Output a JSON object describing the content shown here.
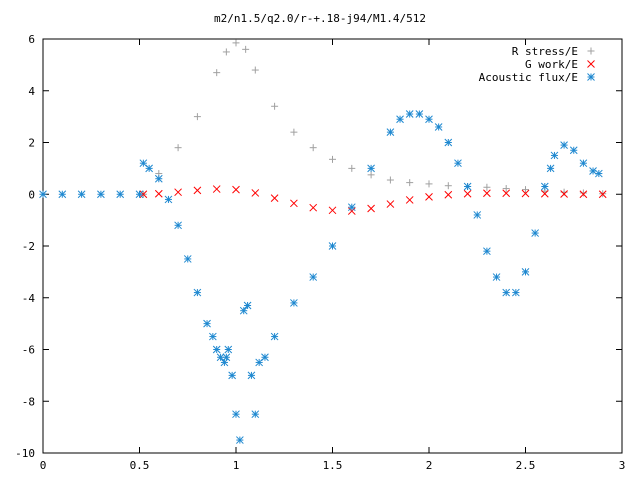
{
  "chart_data": {
    "type": "scatter",
    "title": "m2/n1.5/q2.0/r-+.18-j94/M1.4/512",
    "xlabel": "",
    "ylabel": "",
    "xlim": [
      0,
      3
    ],
    "ylim": [
      -10,
      6
    ],
    "x_ticks": [
      "0",
      "0.5",
      "1",
      "1.5",
      "2",
      "2.5",
      "3"
    ],
    "y_ticks": [
      "6",
      "4",
      "2",
      "0",
      "-2",
      "-4",
      "-6",
      "-8",
      "-10"
    ],
    "grid": false,
    "legend_position": "top-right",
    "series": [
      {
        "name": "R stress/E",
        "marker": "plus",
        "color": "#a0a0a0",
        "x": [
          0.52,
          0.6,
          0.7,
          0.8,
          0.9,
          0.95,
          1.0,
          1.05,
          1.1,
          1.2,
          1.3,
          1.4,
          1.5,
          1.6,
          1.7,
          1.8,
          1.9,
          2.0,
          2.1,
          2.2,
          2.3,
          2.4,
          2.5,
          2.6,
          2.7,
          2.8,
          2.9
        ],
        "y": [
          0.0,
          0.8,
          1.8,
          3.0,
          4.7,
          5.5,
          5.85,
          5.6,
          4.8,
          3.4,
          2.4,
          1.8,
          1.35,
          1.0,
          0.75,
          0.55,
          0.45,
          0.4,
          0.33,
          0.3,
          0.27,
          0.22,
          0.18,
          0.12,
          0.08,
          0.05,
          0.02
        ]
      },
      {
        "name": "G work/E",
        "marker": "cross",
        "color": "#ff0000",
        "x": [
          0.52,
          0.6,
          0.7,
          0.8,
          0.9,
          1.0,
          1.1,
          1.2,
          1.3,
          1.4,
          1.5,
          1.6,
          1.7,
          1.8,
          1.9,
          2.0,
          2.1,
          2.2,
          2.3,
          2.4,
          2.5,
          2.6,
          2.7,
          2.8,
          2.9
        ],
        "y": [
          0.0,
          0.02,
          0.08,
          0.15,
          0.2,
          0.18,
          0.05,
          -0.15,
          -0.35,
          -0.52,
          -0.62,
          -0.65,
          -0.55,
          -0.38,
          -0.22,
          -0.1,
          -0.02,
          0.02,
          0.04,
          0.04,
          0.03,
          0.02,
          0.01,
          0.0,
          0.0
        ]
      },
      {
        "name": "Acoustic flux/E",
        "marker": "star",
        "color": "#1e88d0",
        "x": [
          0.0,
          0.1,
          0.2,
          0.3,
          0.4,
          0.5,
          0.52,
          0.55,
          0.6,
          0.65,
          0.7,
          0.75,
          0.8,
          0.85,
          0.88,
          0.9,
          0.92,
          0.94,
          0.95,
          0.96,
          0.98,
          1.0,
          1.02,
          1.04,
          1.06,
          1.08,
          1.1,
          1.12,
          1.15,
          1.2,
          1.3,
          1.4,
          1.5,
          1.6,
          1.7,
          1.8,
          1.85,
          1.9,
          1.95,
          2.0,
          2.05,
          2.1,
          2.15,
          2.2,
          2.25,
          2.3,
          2.35,
          2.4,
          2.45,
          2.5,
          2.55,
          2.6,
          2.63,
          2.65,
          2.7,
          2.75,
          2.8,
          2.85,
          2.88
        ],
        "y": [
          0.0,
          0.0,
          0.0,
          0.0,
          0.0,
          0.0,
          1.2,
          1.0,
          0.6,
          -0.2,
          -1.2,
          -2.5,
          -3.8,
          -5.0,
          -5.5,
          -6.0,
          -6.3,
          -6.5,
          -6.3,
          -6.0,
          -7.0,
          -8.5,
          -9.5,
          -4.5,
          -4.3,
          -7.0,
          -8.5,
          -6.5,
          -6.3,
          -5.5,
          -4.2,
          -3.2,
          -2.0,
          -0.5,
          1.0,
          2.4,
          2.9,
          3.1,
          3.1,
          2.9,
          2.6,
          2.0,
          1.2,
          0.3,
          -0.8,
          -2.2,
          -3.2,
          -3.8,
          -3.8,
          -3.0,
          -1.5,
          0.3,
          1.0,
          1.5,
          1.9,
          1.7,
          1.2,
          0.9,
          0.8
        ]
      }
    ]
  }
}
